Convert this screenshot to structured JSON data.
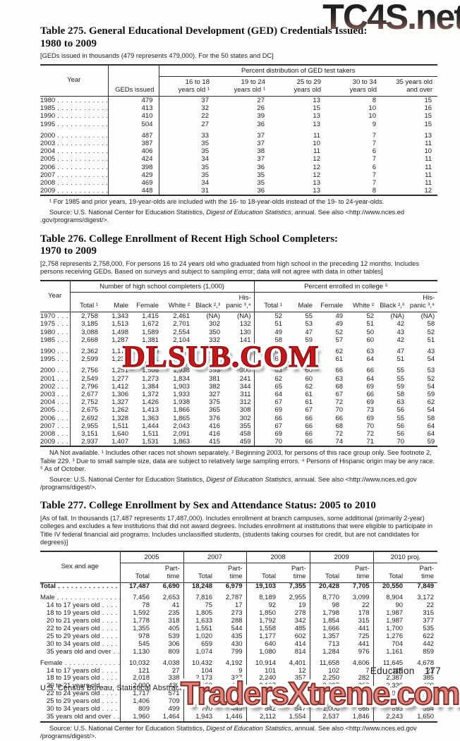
{
  "watermarks": {
    "top_right": "TC4S.net",
    "middle": "DLSUB.COM",
    "bottom": "TradersXtreme.com"
  },
  "t275": {
    "title": "Table 275. General Educational Development (GED) Credentials Issued:\n1980 to 2009",
    "note": "[GEDs issued in thousands (479 represents 479,000). For the 50 states and DC]",
    "header": {
      "year": "Year",
      "geds": "GEDs issued",
      "group": "Percent distribution of GED test takers",
      "cols": [
        "16 to 18\nyears old ¹",
        "19 to 24\nyears old ¹",
        "25 to 29\nyears old",
        "30 to 34\nyears old",
        "35 years old\nand over"
      ]
    },
    "rows": [
      {
        "label": "1980",
        "values": [
          "479",
          "37",
          "27",
          "13",
          "8",
          "15"
        ]
      },
      {
        "label": "1985",
        "values": [
          "413",
          "32",
          "26",
          "15",
          "10",
          "16"
        ]
      },
      {
        "label": "1990",
        "values": [
          "410",
          "22",
          "39",
          "13",
          "10",
          "15"
        ]
      },
      {
        "label": "1995",
        "values": [
          "504",
          "27",
          "36",
          "13",
          "9",
          "15"
        ]
      },
      {
        "label": "2000",
        "gap": true,
        "values": [
          "487",
          "33",
          "37",
          "11",
          "7",
          "13"
        ]
      },
      {
        "label": "2003",
        "values": [
          "387",
          "35",
          "37",
          "10",
          "7",
          "11"
        ]
      },
      {
        "label": "2004",
        "values": [
          "406",
          "35",
          "38",
          "11",
          "6",
          "10"
        ]
      },
      {
        "label": "2005",
        "values": [
          "424",
          "34",
          "37",
          "12",
          "7",
          "11"
        ]
      },
      {
        "label": "2006",
        "values": [
          "398",
          "35",
          "36",
          "12",
          "6",
          "11"
        ]
      },
      {
        "label": "2007",
        "values": [
          "429",
          "35",
          "35",
          "12",
          "7",
          "11"
        ]
      },
      {
        "label": "2008",
        "values": [
          "469",
          "34",
          "35",
          "13",
          "7",
          "11"
        ]
      },
      {
        "label": "2009",
        "values": [
          "448",
          "31",
          "36",
          "13",
          "8",
          "12"
        ]
      }
    ],
    "footnote": "¹ For 1985 and prior years, 19-year-olds are included with the 16- to 18-year-olds instead of the 19- to 24-year-olds.",
    "source": {
      "pre": "Source: U.S. National Center for Education Statistics, ",
      "italic": "Digest of Education Statistics",
      "post": ", annual. See also <http://www.nces.ed .gov/programs/digest/>."
    }
  },
  "t276": {
    "title": "Table 276. College Enrollment of Recent High School Completers:\n1970 to 2009",
    "note": "[2,758 represents 2,758,000. For persons 16 to 24 years old who graduated from high school in the  preceding 12 months. Includes persons receiving GEDs. Based on surveys and subject to sampling error; data will not agree with data in other tables]",
    "header": {
      "year": "Year",
      "group1": "Number of high school completers (1,000)",
      "group2": "Percent enrolled in college ⁵",
      "cols": [
        "Total ¹",
        "Male",
        "Female",
        "White ²",
        "Black ²,³",
        "His-\npanic ³,⁴",
        "Total ¹",
        "Male",
        "Female",
        "White ²",
        "Black ²,³",
        "His-\npanic ³,⁴"
      ]
    },
    "rows": [
      {
        "label": "1970",
        "values": [
          "2,758",
          "1,343",
          "1,415",
          "2,461",
          "(NA)",
          "(NA)",
          "52",
          "55",
          "49",
          "52",
          "(NA)",
          "(NA)"
        ]
      },
      {
        "label": "1975",
        "values": [
          "3,185",
          "1,513",
          "1,672",
          "2,701",
          "302",
          "132",
          "51",
          "53",
          "49",
          "51",
          "42",
          "58"
        ]
      },
      {
        "label": "1980",
        "values": [
          "3,088",
          "1,498",
          "1,589",
          "2,554",
          "350",
          "130",
          "49",
          "47",
          "52",
          "50",
          "43",
          "52"
        ]
      },
      {
        "label": "1985",
        "values": [
          "2,668",
          "1,287",
          "1,381",
          "2,104",
          "332",
          "141",
          "58",
          "59",
          "57",
          "60",
          "42",
          "51"
        ]
      },
      {
        "label": "1990",
        "gap": true,
        "values": [
          "2,362",
          "1,173",
          "1,189",
          "1,819",
          "331",
          "121",
          "60",
          "58",
          "62",
          "63",
          "47",
          "43"
        ]
      },
      {
        "label": "1995",
        "values": [
          "2,599",
          "1,238",
          "1,361",
          "1,861",
          "349",
          "288",
          "62",
          "63",
          "61",
          "64",
          "51",
          "54"
        ]
      },
      {
        "label": "2000",
        "gap": true,
        "values": [
          "2,756",
          "1,251",
          "1,505",
          "1,938",
          "393",
          "300",
          "63",
          "60",
          "66",
          "66",
          "55",
          "53"
        ]
      },
      {
        "label": "2001",
        "values": [
          "2,549",
          "1,277",
          "1,273",
          "1,834",
          "381",
          "241",
          "62",
          "60",
          "63",
          "64",
          "55",
          "52"
        ]
      },
      {
        "label": "2002",
        "values": [
          "2,796",
          "1,412",
          "1,384",
          "1,903",
          "382",
          "344",
          "65",
          "62",
          "68",
          "69",
          "59",
          "54"
        ]
      },
      {
        "label": "2003",
        "values": [
          "2,677",
          "1,306",
          "1,372",
          "1,933",
          "327",
          "311",
          "64",
          "61",
          "67",
          "66",
          "58",
          "59"
        ]
      },
      {
        "label": "2004",
        "values": [
          "2,752",
          "1,327",
          "1,426",
          "1,938",
          "375",
          "312",
          "67",
          "61",
          "72",
          "69",
          "63",
          "62"
        ]
      },
      {
        "label": "2005",
        "values": [
          "2,675",
          "1,262",
          "1,413",
          "1,866",
          "365",
          "308",
          "69",
          "67",
          "70",
          "73",
          "56",
          "54"
        ]
      },
      {
        "label": "2006",
        "values": [
          "2,692",
          "1,328",
          "1,363",
          "1,865",
          "376",
          "302",
          "66",
          "66",
          "66",
          "69",
          "55",
          "58"
        ]
      },
      {
        "label": "2007",
        "values": [
          "2,955",
          "1,511",
          "1,444",
          "2,043",
          "416",
          "355",
          "67",
          "66",
          "68",
          "70",
          "56",
          "64"
        ]
      },
      {
        "label": "2008",
        "values": [
          "3,151",
          "1,640",
          "1,511",
          "2,091",
          "416",
          "458",
          "69",
          "66",
          "72",
          "72",
          "56",
          "64"
        ]
      },
      {
        "label": "2009",
        "values": [
          "2,937",
          "1,407",
          "1,531",
          "1,863",
          "415",
          "459",
          "70",
          "66",
          "74",
          "71",
          "70",
          "59"
        ]
      }
    ],
    "footnote": "NA Not available. ¹ Includes other races not shown separately. ² Beginning 2003, for persons of this race group only. See footnote 2, Table 229. ³ Due to small sample size, data are subject to relatively large sampling errors. ⁴ Persons of Hispanic origin may be any race. ⁵ As of October.",
    "source": {
      "pre": "Source: U.S. National Center for Education Statistics, ",
      "italic": "Digest of Education Statistics",
      "post": ", annual. See also <http://www.nces.ed.gov /programs/digest/>."
    }
  },
  "t277": {
    "title": "Table 277. College Enrollment by Sex and Attendance Status: 2005 to 2010",
    "note": "[As of fall. In thousands (17,487 represents 17,487,000). Includes enrollment at branch campuses, some additional (primarily 2-year) colleges and excludes a few institutions that did not award degrees. Includes enrollment at institutions that were eligible to participate in Title IV federal financial aid programs. Includes unclassified students, (students taking courses for credit, but are not candidates for degrees)]",
    "header": {
      "stub": "Sex and age",
      "years": [
        "2005",
        "2007",
        "2008",
        "2009",
        "2010 proj."
      ],
      "sub_total": "Total",
      "sub_part": "Part-\ntime"
    },
    "rows": [
      {
        "label": "Total",
        "bold": true,
        "values": [
          "17,487",
          "6,690",
          "18,248",
          "6,979",
          "19,103",
          "7,355",
          "20,428",
          "7,705",
          "20,550",
          "7,849"
        ]
      },
      {
        "label": "Male",
        "gap": true,
        "values": [
          "7,456",
          "2,653",
          "7,816",
          "2,787",
          "8,189",
          "2,955",
          "8,770",
          "3,099",
          "8,904",
          "3,172"
        ]
      },
      {
        "label": "14 to 17 years old",
        "indent": true,
        "values": [
          "78",
          "41",
          "75",
          "17",
          "92",
          "19",
          "98",
          "22",
          "90",
          "22"
        ]
      },
      {
        "label": "18 to 19 years old",
        "indent": true,
        "values": [
          "1,592",
          "235",
          "1,805",
          "273",
          "1,850",
          "278",
          "1,798",
          "178",
          "1,987",
          "315"
        ]
      },
      {
        "label": "20 to 21 years old",
        "indent": true,
        "values": [
          "1,778",
          "318",
          "1,633",
          "288",
          "1,792",
          "342",
          "1,854",
          "315",
          "1,987",
          "377"
        ]
      },
      {
        "label": "22 to 24 years old",
        "indent": true,
        "values": [
          "1,355",
          "405",
          "1,551",
          "544",
          "1,558",
          "485",
          "1,666",
          "441",
          "1,700",
          "535"
        ]
      },
      {
        "label": "25 to 29 years old",
        "indent": true,
        "values": [
          "978",
          "539",
          "1,020",
          "435",
          "1,177",
          "602",
          "1,357",
          "725",
          "1,276",
          "622"
        ]
      },
      {
        "label": "30 to 34 years old",
        "indent": true,
        "values": [
          "545",
          "306",
          "659",
          "430",
          "640",
          "414",
          "713",
          "441",
          "704",
          "442"
        ]
      },
      {
        "label": "35 years old and over",
        "indent": true,
        "values": [
          "1,130",
          "809",
          "1,074",
          "799",
          "1,080",
          "814",
          "1,284",
          "976",
          "1,161",
          "859"
        ]
      },
      {
        "label": "Female",
        "gap": true,
        "values": [
          "10,032",
          "4,038",
          "10,432",
          "4,192",
          "10,914",
          "4,401",
          "11,658",
          "4,606",
          "11,645",
          "4,678"
        ]
      },
      {
        "label": "14 to 17 years old",
        "indent": true,
        "values": [
          "121",
          "27",
          "104",
          "9",
          "101",
          "12",
          "102",
          "7",
          "118",
          "21"
        ]
      },
      {
        "label": "18 to 19 years old",
        "indent": true,
        "values": [
          "2,018",
          "338",
          "2,173",
          "327",
          "2,240",
          "357",
          "2,250",
          "282",
          "2,387",
          "385"
        ]
      },
      {
        "label": "20 to 21 years old",
        "indent": true,
        "values": [
          "2,000",
          "430",
          "2,129",
          "452",
          "2,137",
          "409",
          "2,037",
          "308",
          "2,330",
          "460"
        ]
      },
      {
        "label": "22 to 24 years old",
        "indent": true,
        "values": [
          "1,717",
          "571",
          "1,811",
          "685",
          "1,922",
          "703",
          "2,025",
          "651",
          "2,028",
          "747"
        ]
      },
      {
        "label": "25 to 29 years old",
        "indent": true,
        "values": [
          "1,406",
          "709",
          "1,502",
          "824",
          "1,560",
          "818",
          "1,702",
          "844",
          "1,646",
          "860"
        ]
      },
      {
        "label": "30 to 34 years old",
        "indent": true,
        "values": [
          "809",
          "499",
          "770",
          "449",
          "842",
          "547",
          "1,006",
          "668",
          "893",
          "554"
        ]
      },
      {
        "label": "35 years old and over",
        "indent": true,
        "values": [
          "1,960",
          "1,464",
          "1,943",
          "1,446",
          "2,112",
          "1,554",
          "2,537",
          "1,846",
          "2,243",
          "1,650"
        ]
      }
    ],
    "source": {
      "pre": "Source: U.S. National Center for Education Statistics, ",
      "italic": "Digest of Education Statistics",
      "post": ", annual. See also <http://www.nces.ed.gov /programs/digest/>."
    }
  },
  "page_footer": {
    "section": "Education",
    "page_number": "177",
    "census_line": "U.S. Census Bureau, Statistical Abstract of the United States: 2012"
  }
}
